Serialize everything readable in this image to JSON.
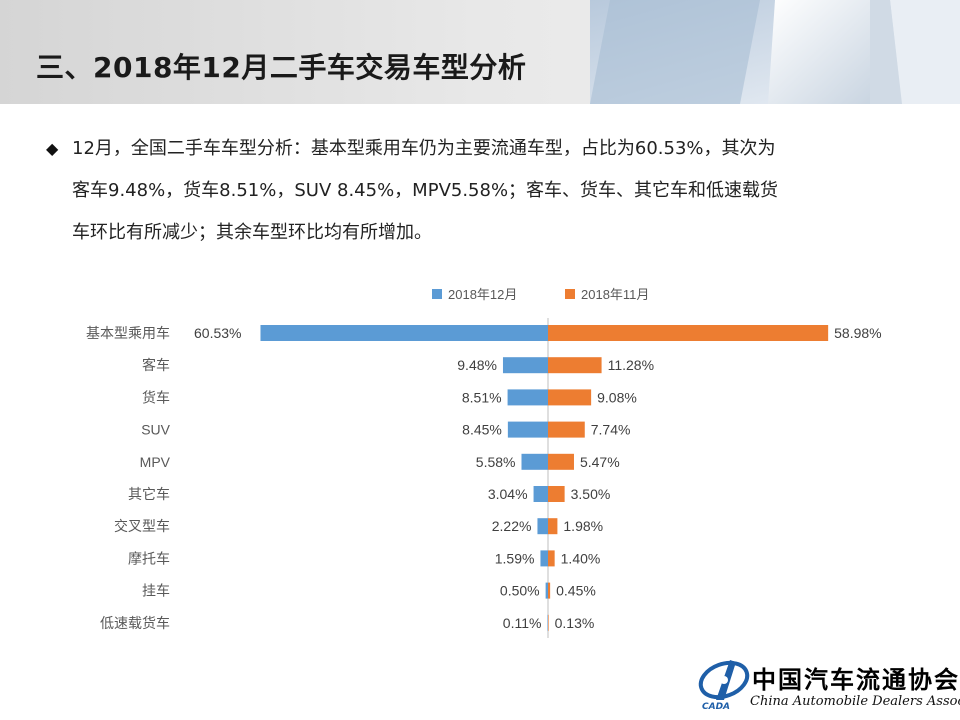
{
  "header": {
    "title": "三、2018年12月二手车交易车型分析"
  },
  "summary": {
    "bullet": "◆",
    "lines": [
      "12月，全国二手车车型分析：基本型乘用车仍为主要流通车型，占比为60.53%，其次为",
      "客车9.48%，货车8.51%，SUV  8.45%，MPV5.58%；客车、货车、其它车和低速载货",
      "车环比有所减少；其余车型环比均有所增加。"
    ]
  },
  "chart_data": {
    "type": "bar",
    "orientation": "horizontal-diverging",
    "title": "",
    "legend_position": "top-center",
    "categories": [
      "基本型乘用车",
      "客车",
      "货车",
      "SUV",
      "MPV",
      "其它车",
      "交叉型车",
      "摩托车",
      "挂车",
      "低速载货车"
    ],
    "series": [
      {
        "name": "2018年12月",
        "color": "#5b9bd5",
        "values": [
          60.53,
          9.48,
          8.51,
          8.45,
          5.58,
          3.04,
          2.22,
          1.59,
          0.5,
          0.11
        ],
        "labels": [
          "60.53%",
          "9.48%",
          "8.51%",
          "8.45%",
          "5.58%",
          "3.04%",
          "2.22%",
          "1.59%",
          "0.50%",
          "0.11%"
        ]
      },
      {
        "name": "2018年11月",
        "color": "#ed7d31",
        "values": [
          58.98,
          11.28,
          9.08,
          7.74,
          5.47,
          3.5,
          1.98,
          1.4,
          0.45,
          0.13
        ],
        "labels": [
          "58.98%",
          "11.28%",
          "9.08%",
          "7.74%",
          "5.47%",
          "3.50%",
          "1.98%",
          "1.40%",
          "0.45%",
          "0.13%"
        ]
      }
    ],
    "xlim": [
      -61,
      61
    ]
  },
  "logo": {
    "cn_text": "中国汽车流通协会",
    "en_text": "China Automobile Dealers Association",
    "abbr": "CADA",
    "colors": {
      "blue": "#1f5fa8"
    }
  }
}
